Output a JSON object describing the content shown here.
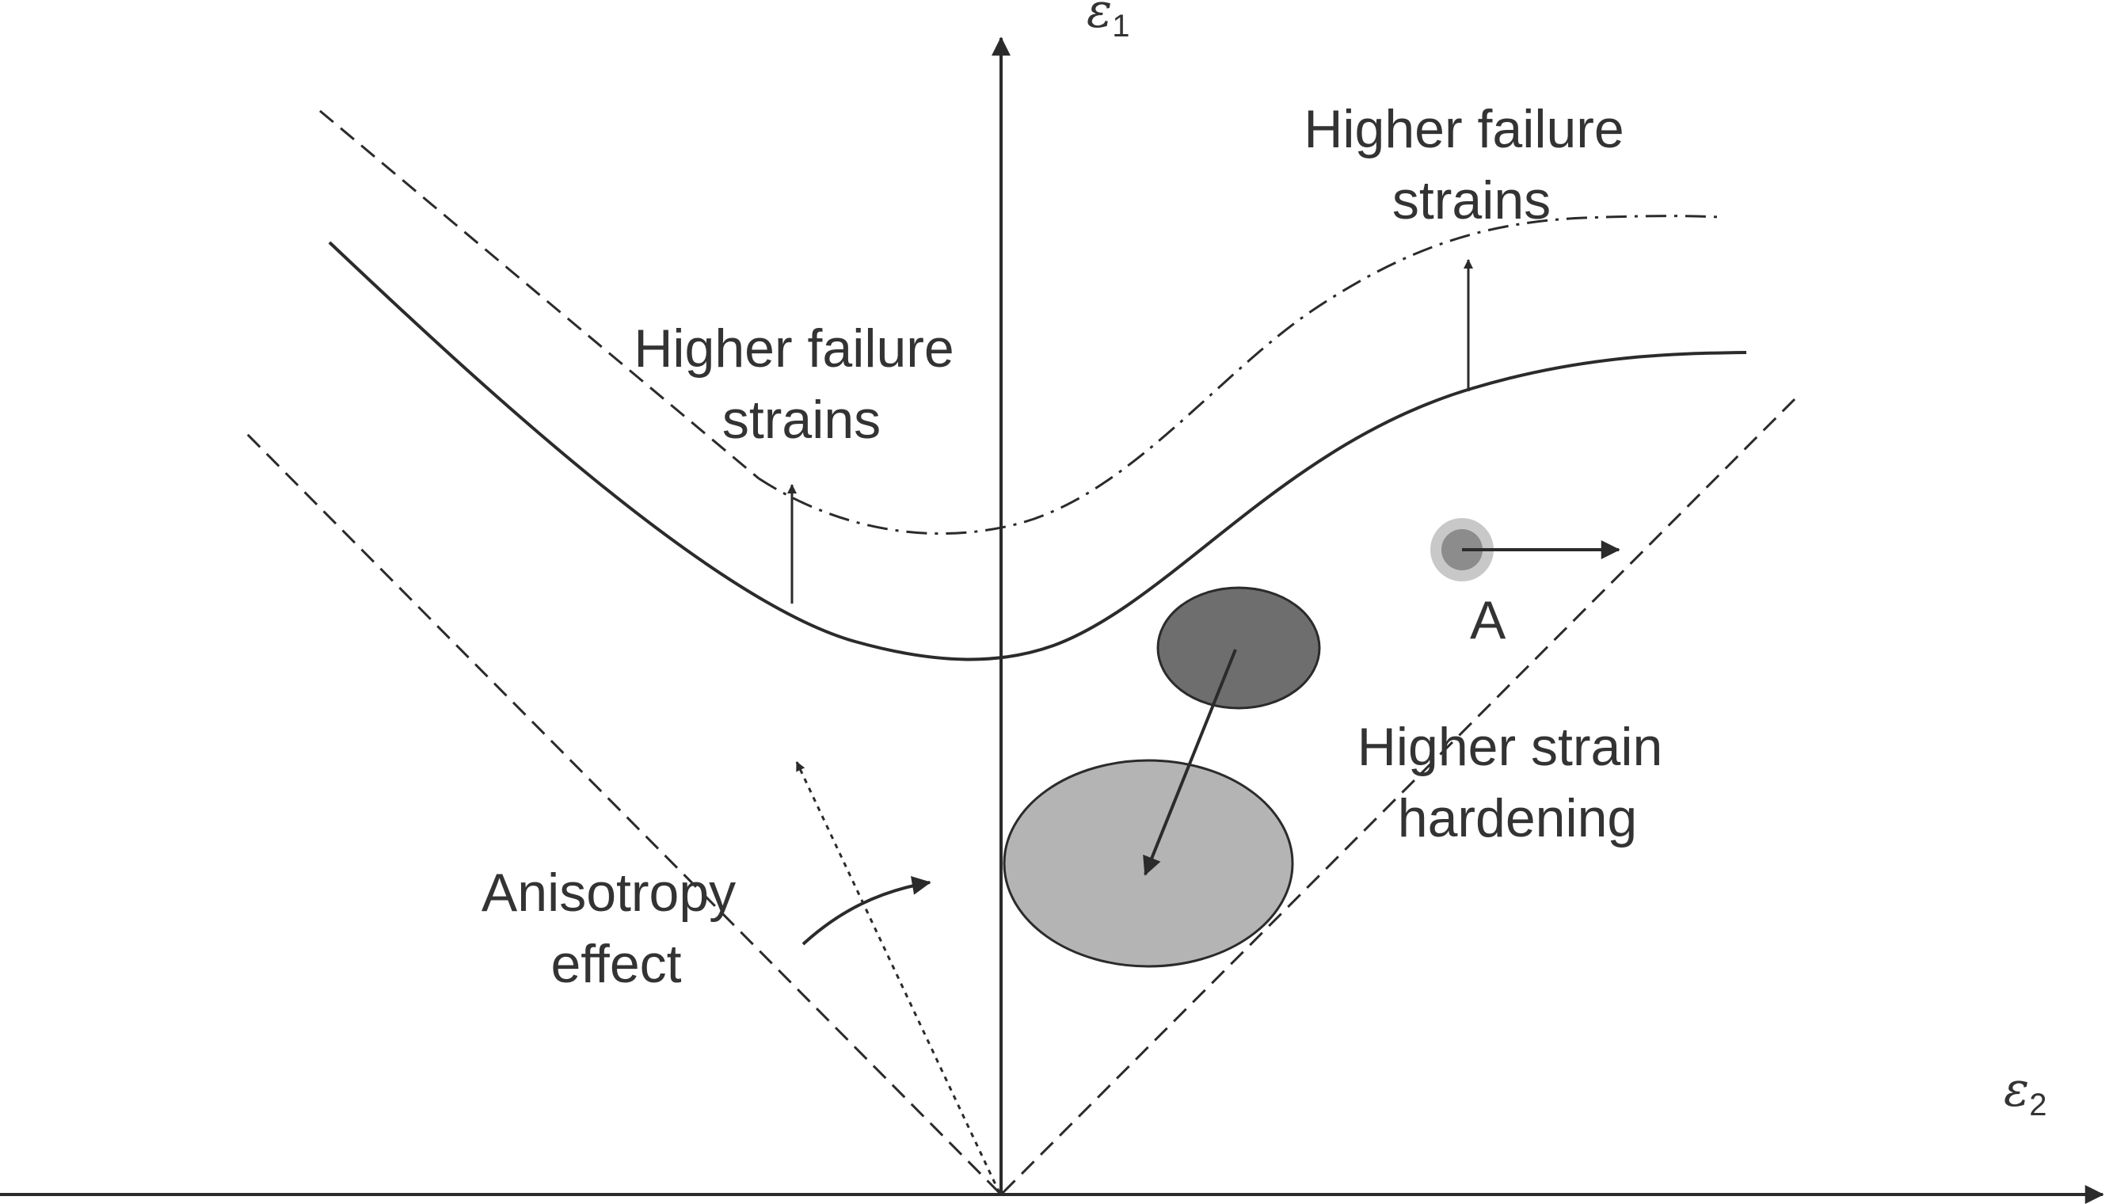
{
  "axes": {
    "y_label": "ε",
    "y_subscript": "1",
    "x_label": "ε",
    "x_subscript": "2"
  },
  "labels": {
    "failure_left_line1": "Higher failure",
    "failure_left_line2": "strains",
    "failure_right_line1": "Higher failure",
    "failure_right_line2": "strains",
    "point_a": "A",
    "hardening_line1": "Higher strain",
    "hardening_line2": "hardening",
    "anisotropy_line1": "Anisotropy",
    "anisotropy_line2": "effect"
  },
  "colors": {
    "line": "#2b2b2b",
    "text": "#333333",
    "ellipse_dark": "#6e6e6e",
    "ellipse_light": "#b4b4b4",
    "point_a": "#8c8c8c"
  }
}
